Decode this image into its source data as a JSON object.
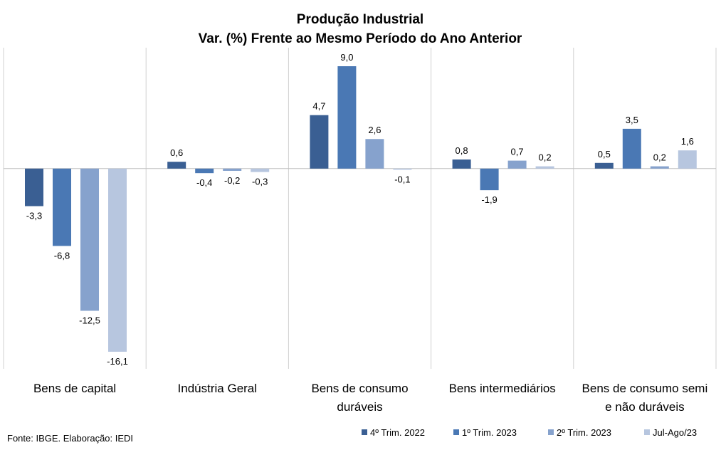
{
  "chart_data": {
    "type": "bar",
    "title": [
      "Produção Industrial",
      "Var. (%)  Frente ao Mesmo Período do Ano Anterior"
    ],
    "xlabel": "",
    "ylabel": "",
    "ylim": [
      -16.1,
      9.0
    ],
    "grid": false,
    "legend_position": "bottom-right",
    "categories": [
      [
        "Bens de capital"
      ],
      [
        "Indústria Geral"
      ],
      [
        "Bens de consumo",
        "duráveis"
      ],
      [
        "Bens intermediários"
      ],
      [
        "Bens de consumo semi",
        "e não duráveis"
      ]
    ],
    "series": [
      {
        "name": "4º Trim. 2022",
        "color": "#3a5f93",
        "values": [
          -3.3,
          0.6,
          4.7,
          0.8,
          0.5
        ],
        "labels": [
          "-3,3",
          "0,6",
          "4,7",
          "0,8",
          "0,5"
        ]
      },
      {
        "name": "1º Trim. 2023",
        "color": "#4a78b4",
        "values": [
          -6.8,
          -0.4,
          9.0,
          -1.9,
          3.5
        ],
        "labels": [
          "-6,8",
          "-0,4",
          "9,0",
          "-1,9",
          "3,5"
        ]
      },
      {
        "name": "2º Trim. 2023",
        "color": "#86a2cd",
        "values": [
          -12.5,
          -0.2,
          2.6,
          0.7,
          0.2
        ],
        "labels": [
          "-12,5",
          "-0,2",
          "2,6",
          "0,7",
          "0,2"
        ]
      },
      {
        "name": "Jul-Ago/23",
        "color": "#b7c6df",
        "values": [
          -16.1,
          -0.3,
          -0.1,
          0.2,
          1.6
        ],
        "labels": [
          "-16,1",
          "-0,3",
          "-0,1",
          "0,2",
          "1,6"
        ]
      }
    ]
  },
  "source_note": "Fonte: IBGE. Elaboração: IEDI"
}
